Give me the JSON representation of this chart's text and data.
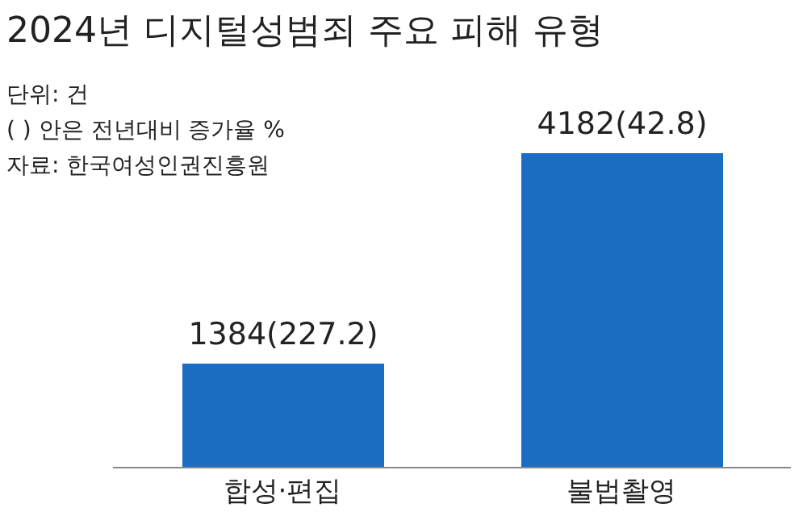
{
  "chart_data": {
    "type": "bar",
    "title": "2024년 디지털성범죄 주요 피해 유형",
    "annotations": [
      "단위: 건",
      "( ) 안은 전년대비 증가율 %",
      "자료: 한국여성인권진흥원"
    ],
    "categories": [
      "합성·편집",
      "불법촬영"
    ],
    "values": [
      1384,
      4182
    ],
    "value_labels": [
      "1384(227.2)",
      "4182(42.8)"
    ],
    "color": "#1a6dc2"
  }
}
